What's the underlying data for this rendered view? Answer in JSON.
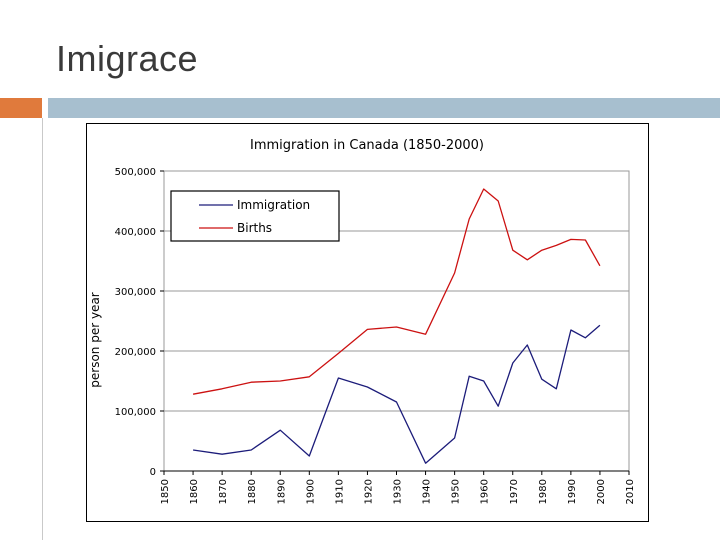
{
  "slide": {
    "title": "Imigrace"
  },
  "colors": {
    "accent_orange": "#e07a3c",
    "accent_blue": "#a7bfcf",
    "immigration": "#1c1c7a",
    "births": "#cc1111",
    "grid": "#999999"
  },
  "chart_data": {
    "type": "line",
    "title": "Immigration in Canada (1850-2000)",
    "xlabel": "",
    "ylabel": "person per year",
    "xlim": [
      1850,
      2010
    ],
    "ylim": [
      0,
      500000
    ],
    "x_ticks": [
      1850,
      1860,
      1870,
      1880,
      1890,
      1900,
      1910,
      1920,
      1930,
      1940,
      1950,
      1960,
      1970,
      1980,
      1990,
      2000,
      2010
    ],
    "x_tick_labels": [
      "1850",
      "1860",
      "1870",
      "1880",
      "1890",
      "1900",
      "1910",
      "1920",
      "1930",
      "1940",
      "1950",
      "1960",
      "1970",
      "1980",
      "1990",
      "2000",
      "2010"
    ],
    "y_ticks": [
      0,
      100000,
      200000,
      300000,
      400000,
      500000
    ],
    "y_tick_labels": [
      "0",
      "100,000",
      "200,000",
      "300,000",
      "400,000",
      "500,000"
    ],
    "grid": "horizontal",
    "legend_position": "top-left",
    "series": [
      {
        "name": "Immigration",
        "color": "#1c1c7a",
        "x": [
          1860,
          1870,
          1880,
          1890,
          1900,
          1905,
          1910,
          1920,
          1930,
          1940,
          1950,
          1955,
          1960,
          1965,
          1970,
          1975,
          1980,
          1985,
          1990,
          1995,
          2000
        ],
        "values": [
          35000,
          28000,
          35000,
          68000,
          25000,
          90000,
          155000,
          140000,
          115000,
          13000,
          55000,
          158000,
          150000,
          108000,
          180000,
          210000,
          153000,
          137000,
          235000,
          222000,
          243000
        ]
      },
      {
        "name": "Births",
        "color": "#cc1111",
        "x": [
          1860,
          1870,
          1880,
          1890,
          1900,
          1910,
          1920,
          1930,
          1940,
          1950,
          1955,
          1960,
          1965,
          1970,
          1975,
          1980,
          1985,
          1990,
          1995,
          2000
        ],
        "values": [
          128000,
          137000,
          148000,
          150000,
          157000,
          196000,
          236000,
          240000,
          228000,
          330000,
          420000,
          470000,
          450000,
          368000,
          352000,
          368000,
          376000,
          386000,
          385000,
          342000
        ]
      }
    ]
  }
}
